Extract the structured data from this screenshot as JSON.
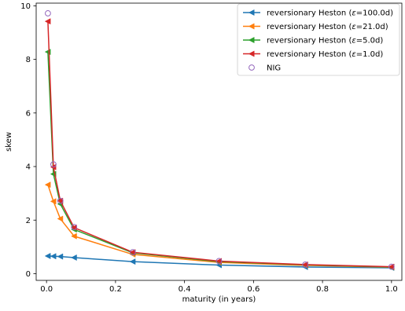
{
  "chart_data": {
    "type": "line",
    "xlabel": "maturity (in years)",
    "ylabel": "skew",
    "xlim": [
      -0.03,
      1.03
    ],
    "ylim": [
      -0.25,
      10.1
    ],
    "x_ticks": [
      0.0,
      0.2,
      0.4,
      0.6,
      0.8,
      1.0
    ],
    "x_tick_labels": [
      "0.0",
      "0.2",
      "0.4",
      "0.6",
      "0.8",
      "1.0"
    ],
    "y_ticks": [
      0,
      2,
      4,
      6,
      8,
      10
    ],
    "y_tick_labels": [
      "0",
      "2",
      "4",
      "6",
      "8",
      "10"
    ],
    "grid": false,
    "legend_position": "top-right",
    "series": [
      {
        "name": "reversionary Heston (ε=100.0d)",
        "legend_prefix": "reversionary Heston (",
        "legend_eps": "ε",
        "legend_suffix": "=100.0d)",
        "color": "#1f77b4",
        "marker": "triangle-left",
        "x": [
          0.004,
          0.02,
          0.04,
          0.08,
          0.25,
          0.5,
          0.75,
          1.0
        ],
        "y": [
          0.66,
          0.65,
          0.64,
          0.6,
          0.45,
          0.32,
          0.25,
          0.22
        ]
      },
      {
        "name": "reversionary Heston (ε=21.0d)",
        "legend_prefix": "reversionary Heston (",
        "legend_eps": "ε",
        "legend_suffix": "=21.0d)",
        "color": "#ff7f0e",
        "marker": "triangle-left",
        "x": [
          0.004,
          0.02,
          0.04,
          0.08,
          0.25,
          0.5,
          0.75,
          1.0
        ],
        "y": [
          3.32,
          2.7,
          2.05,
          1.4,
          0.72,
          0.42,
          0.31,
          0.24
        ]
      },
      {
        "name": "reversionary Heston (ε=5.0d)",
        "legend_prefix": "reversionary Heston (",
        "legend_eps": "ε",
        "legend_suffix": "=5.0d)",
        "color": "#2ca02c",
        "marker": "triangle-left",
        "x": [
          0.004,
          0.02,
          0.04,
          0.08,
          0.25,
          0.5,
          0.75,
          1.0
        ],
        "y": [
          8.28,
          3.72,
          2.6,
          1.65,
          0.78,
          0.45,
          0.33,
          0.25
        ]
      },
      {
        "name": "reversionary Heston (ε=1.0d)",
        "legend_prefix": "reversionary Heston (",
        "legend_eps": "ε",
        "legend_suffix": "=1.0d)",
        "color": "#d62728",
        "marker": "triangle-left",
        "x": [
          0.004,
          0.02,
          0.04,
          0.08,
          0.25,
          0.5,
          0.75,
          1.0
        ],
        "y": [
          9.42,
          3.98,
          2.72,
          1.72,
          0.8,
          0.47,
          0.34,
          0.26
        ]
      },
      {
        "name": "NIG",
        "legend_prefix": "NIG",
        "legend_eps": "",
        "legend_suffix": "",
        "color": "#9467bd",
        "marker": "circle-open",
        "x": [
          0.004,
          0.02,
          0.04,
          0.08,
          0.25,
          0.5,
          0.75,
          1.0
        ],
        "y": [
          9.72,
          4.08,
          2.72,
          1.74,
          0.8,
          0.47,
          0.34,
          0.26
        ]
      }
    ]
  }
}
